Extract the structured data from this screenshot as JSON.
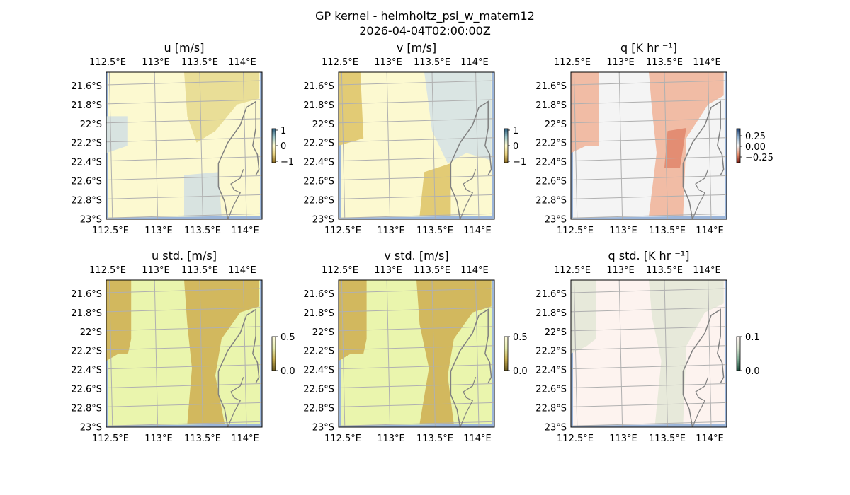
{
  "figure": {
    "title_line1": "GP kernel - helmholtz_psi_w_matern12",
    "title_line2": "2026-04-04T02:00:00Z"
  },
  "colors": {
    "ocean": "#9bb5d9",
    "grid": "#b0b0b0",
    "coast": "#808080"
  },
  "chart_data": [
    {
      "type": "heatmap",
      "title": "u [m/s]",
      "x_tick_labels": [
        "112.5°E",
        "113°E",
        "113.5°E",
        "114°E"
      ],
      "y_tick_labels": [
        "21.6°S",
        "21.8°S",
        "22°S",
        "22.2°S",
        "22.4°S",
        "22.6°S",
        "22.8°S",
        "23°S"
      ],
      "colorbar": {
        "ticks": [
          "1",
          "0",
          "−1"
        ],
        "range": [
          -1,
          1
        ]
      },
      "background": "#fcf9d0",
      "accent": "#e8dc94",
      "accent2": "#d6e2e0"
    },
    {
      "type": "heatmap",
      "title": "v [m/s]",
      "x_tick_labels": [
        "112.5°E",
        "113°E",
        "113.5°E",
        "114°E"
      ],
      "y_tick_labels": [
        "21.6°S",
        "21.8°S",
        "22°S",
        "22.2°S",
        "22.4°S",
        "22.6°S",
        "22.8°S",
        "23°S"
      ],
      "colorbar": {
        "ticks": [
          "1",
          "0",
          "−1"
        ],
        "range": [
          -1,
          1
        ]
      },
      "background": "#fcf9d0",
      "accent": "#e0c870",
      "accent2": "#d8e4e4"
    },
    {
      "type": "heatmap",
      "title": "q [K hr ⁻¹]",
      "x_tick_labels": [
        "112.5°E",
        "113°E",
        "113.5°E",
        "114°E"
      ],
      "y_tick_labels": [
        "21.6°S",
        "21.8°S",
        "22°S",
        "22.2°S",
        "22.4°S",
        "22.6°S",
        "22.8°S",
        "23°S"
      ],
      "colorbar": {
        "ticks": [
          "0.25",
          "0.00",
          "−0.25"
        ],
        "range": [
          -0.25,
          0.25
        ]
      },
      "background": "#f4f4f4",
      "accent": "#f0b8a0",
      "accent2": "#e28a70"
    },
    {
      "type": "heatmap",
      "title": "u std. [m/s]",
      "x_tick_labels": [
        "112.5°E",
        "113°E",
        "113.5°E",
        "114°E"
      ],
      "y_tick_labels": [
        "21.6°S",
        "21.8°S",
        "22°S",
        "22.2°S",
        "22.4°S",
        "22.6°S",
        "22.8°S",
        "23°S"
      ],
      "colorbar": {
        "ticks": [
          "0.5",
          "0.0"
        ],
        "range": [
          0,
          0.5
        ]
      },
      "background": "#eaf5ad",
      "accent": "#d1b45a",
      "accent2": "#c9ad55"
    },
    {
      "type": "heatmap",
      "title": "v std. [m/s]",
      "x_tick_labels": [
        "112.5°E",
        "113°E",
        "113.5°E",
        "114°E"
      ],
      "y_tick_labels": [
        "21.6°S",
        "21.8°S",
        "22°S",
        "22.2°S",
        "22.4°S",
        "22.6°S",
        "22.8°S",
        "23°S"
      ],
      "colorbar": {
        "ticks": [
          "0.5",
          "0.0"
        ],
        "range": [
          0,
          0.5
        ]
      },
      "background": "#eaf5ad",
      "accent": "#d1b45a",
      "accent2": "#c9ad55"
    },
    {
      "type": "heatmap",
      "title": "q std. [K hr ⁻¹]",
      "x_tick_labels": [
        "112.5°E",
        "113°E",
        "113.5°E",
        "114°E"
      ],
      "y_tick_labels": [
        "21.6°S",
        "21.8°S",
        "22°S",
        "22.2°S",
        "22.4°S",
        "22.6°S",
        "22.8°S",
        "23°S"
      ],
      "colorbar": {
        "ticks": [
          "0.1",
          "0.0"
        ],
        "range": [
          0,
          0.1
        ]
      },
      "background": "#fdf3ef",
      "accent": "#e6e8d8",
      "accent2": "#dfe3d0"
    }
  ]
}
